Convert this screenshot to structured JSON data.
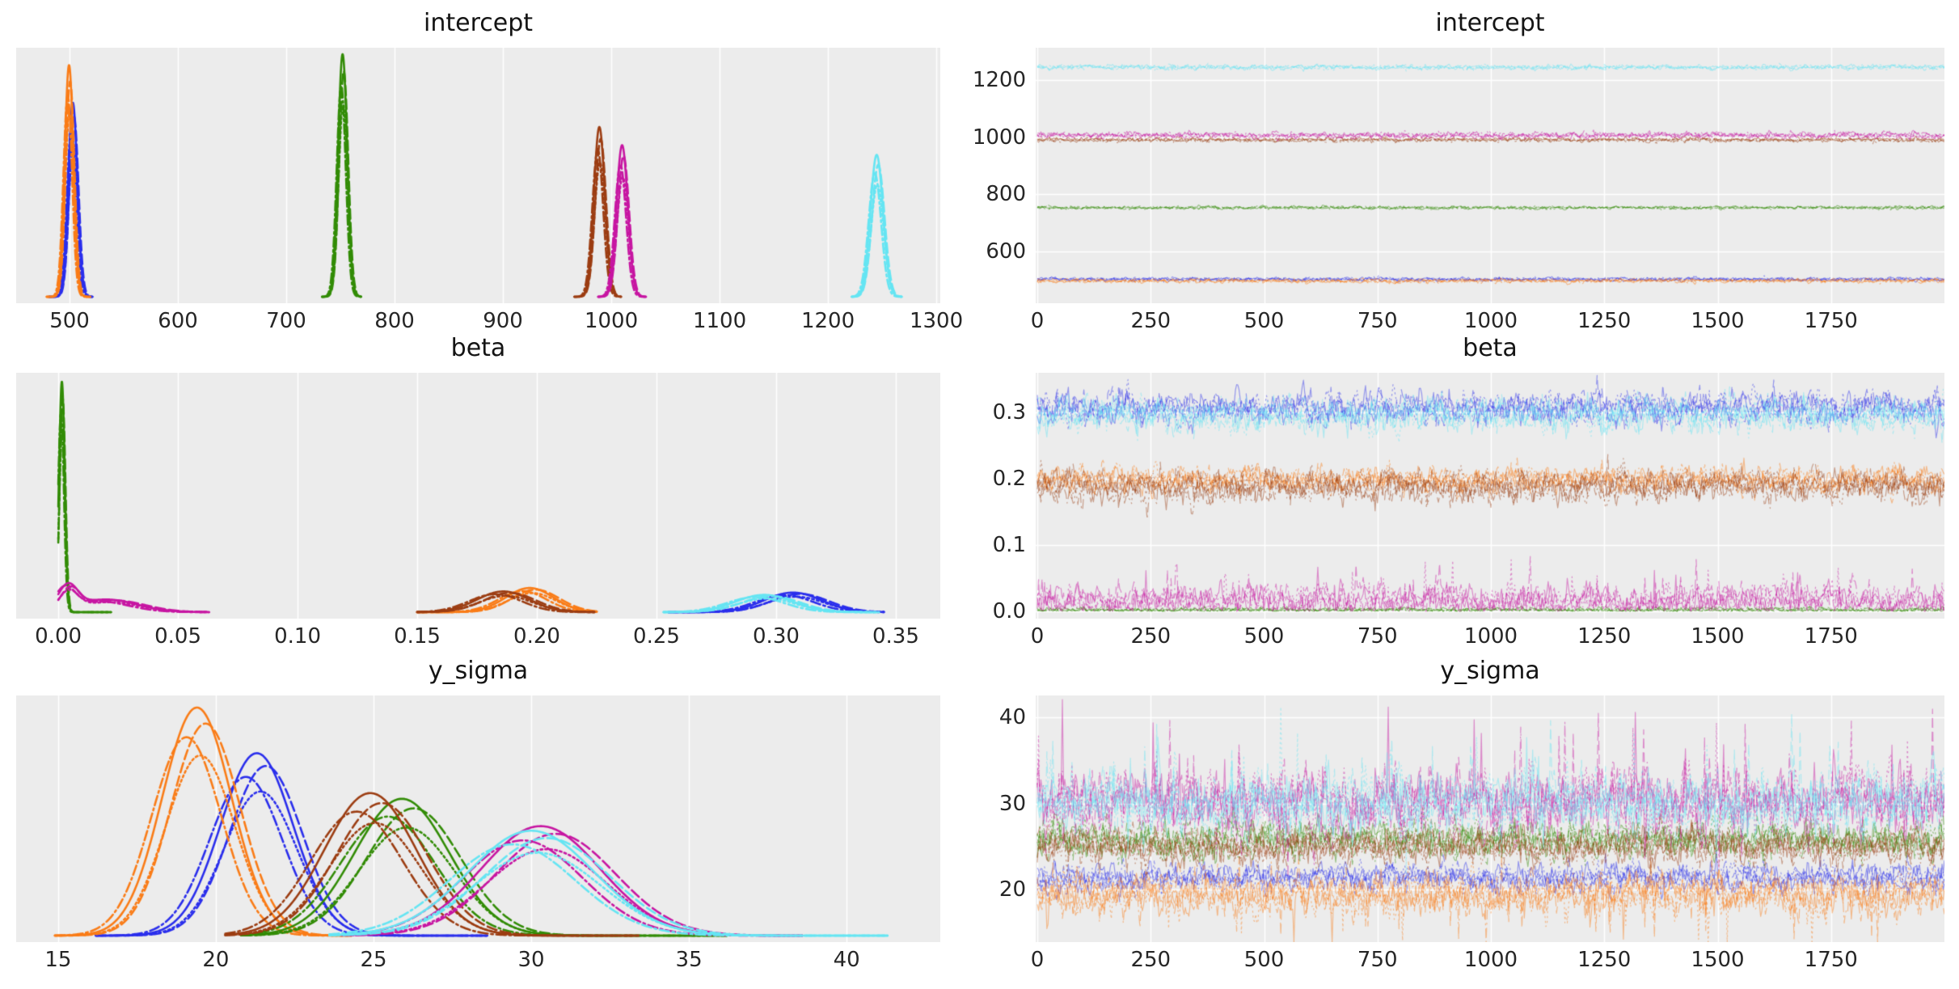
{
  "figure": {
    "background": "#ffffff",
    "axes_background": "#ececec",
    "grid_color": "#ffffff",
    "tick_color": "#262626",
    "title_color": "#141414",
    "palette": {
      "blue": "#2a2eec",
      "orange": "#fa7c17",
      "green": "#328c06",
      "brown": "#9c3d12",
      "magenta": "#c716a2",
      "cyan": "#65e5f3"
    },
    "chain_linestyles": [
      "solid",
      "dashed",
      "dashdot",
      "dotted"
    ]
  },
  "chart_data": [
    {
      "id": "intercept-density",
      "type": "kde",
      "title": "intercept",
      "xlabel": "",
      "ylabel": "",
      "legend": "none",
      "grid": "x",
      "xlim": [
        450.7,
        1303.7
      ],
      "x_ticks": [
        500,
        600,
        700,
        800,
        900,
        1000,
        1100,
        1200,
        1300
      ],
      "x_tick_labels": [
        "500",
        "600",
        "700",
        "800",
        "900",
        "1000",
        "1100",
        "1200",
        "1300"
      ],
      "series": [
        {
          "name": "blue",
          "color": "#2a2eec",
          "components": [
            {
              "center": 503,
              "sd": 4.2,
              "height": 0.8
            }
          ],
          "span": [
            481,
            521
          ]
        },
        {
          "name": "orange",
          "color": "#fa7c17",
          "components": [
            {
              "center": 499.5,
              "sd": 4.0,
              "height": 0.955
            }
          ],
          "span": [
            479,
            519
          ]
        },
        {
          "name": "green",
          "color": "#328c06",
          "components": [
            {
              "center": 752,
              "sd": 4.2,
              "height": 1.0
            }
          ],
          "span": [
            733,
            769
          ]
        },
        {
          "name": "brown",
          "color": "#9c3d12",
          "components": [
            {
              "center": 989,
              "sd": 5.0,
              "height": 0.7
            }
          ],
          "span": [
            966,
            1009
          ]
        },
        {
          "name": "magenta",
          "color": "#c716a2",
          "components": [
            {
              "center": 1010,
              "sd": 5.2,
              "height": 0.625
            }
          ],
          "span": [
            988,
            1032
          ]
        },
        {
          "name": "cyan",
          "color": "#65e5f3",
          "components": [
            {
              "center": 1245,
              "sd": 5.8,
              "height": 0.585
            }
          ],
          "span": [
            1222,
            1268
          ]
        }
      ]
    },
    {
      "id": "intercept-trace",
      "type": "trace",
      "title": "intercept",
      "xlabel": "",
      "ylabel": "",
      "legend": "none",
      "grid": "both",
      "xlim": [
        -3.6,
        2000
      ],
      "ylim": [
        418.8,
        1313.2
      ],
      "draws": 2000,
      "x_ticks": [
        0,
        250,
        500,
        750,
        1000,
        1250,
        1500,
        1750
      ],
      "x_tick_labels": [
        "0",
        "250",
        "500",
        "750",
        "1000",
        "1250",
        "1500",
        "1750"
      ],
      "y_ticks": [
        600,
        800,
        1000,
        1200
      ],
      "y_tick_labels": [
        "600",
        "800",
        "1000",
        "1200"
      ],
      "series": [
        {
          "name": "blue",
          "color": "#2a2eec",
          "mean": 503,
          "sd": 3.0
        },
        {
          "name": "orange",
          "color": "#fa7c17",
          "mean": 497.5,
          "sd": 3.2
        },
        {
          "name": "green",
          "color": "#328c06",
          "mean": 753.5,
          "sd": 2.6
        },
        {
          "name": "brown",
          "color": "#9c3d12",
          "mean": 991,
          "sd": 3.6
        },
        {
          "name": "magenta",
          "color": "#c716a2",
          "mean": 1007,
          "sd": 5.0
        },
        {
          "name": "cyan",
          "color": "#65e5f3",
          "mean": 1245,
          "sd": 4.0
        }
      ]
    },
    {
      "id": "beta-density",
      "type": "kde",
      "title": "beta",
      "xlabel": "",
      "ylabel": "",
      "legend": "none",
      "grid": "x",
      "xlim": [
        -0.0176,
        0.3686
      ],
      "x_ticks": [
        0.0,
        0.05,
        0.1,
        0.15,
        0.2,
        0.25,
        0.3,
        0.35
      ],
      "x_tick_labels": [
        "0.00",
        "0.05",
        "0.10",
        "0.15",
        "0.20",
        "0.25",
        "0.30",
        "0.35"
      ],
      "series": [
        {
          "name": "blue",
          "color": "#2a2eec",
          "components": [
            {
              "center": 0.307,
              "sd": 0.012,
              "height": 0.085
            }
          ],
          "span": [
            0.255,
            0.345
          ]
        },
        {
          "name": "orange",
          "color": "#fa7c17",
          "components": [
            {
              "center": 0.197,
              "sd": 0.01,
              "height": 0.105
            }
          ],
          "span": [
            0.15,
            0.225
          ]
        },
        {
          "name": "green",
          "color": "#328c06",
          "components": [
            {
              "center": 0.0015,
              "sd": 0.0012,
              "height": 1.0
            }
          ],
          "span": [
            0.0,
            0.022
          ]
        },
        {
          "name": "brown",
          "color": "#9c3d12",
          "components": [
            {
              "center": 0.186,
              "sd": 0.011,
              "height": 0.09
            }
          ],
          "span": [
            0.15,
            0.224
          ]
        },
        {
          "name": "magenta",
          "color": "#c716a2",
          "components": [
            {
              "center": 0.004,
              "sd": 0.004,
              "height": 0.1
            },
            {
              "center": 0.02,
              "sd": 0.013,
              "height": 0.055
            }
          ],
          "span": [
            0.0,
            0.063
          ]
        },
        {
          "name": "cyan",
          "color": "#65e5f3",
          "components": [
            {
              "center": 0.295,
              "sd": 0.012,
              "height": 0.075
            }
          ],
          "span": [
            0.253,
            0.343
          ]
        }
      ]
    },
    {
      "id": "beta-trace",
      "type": "trace",
      "title": "beta",
      "xlabel": "",
      "ylabel": "",
      "legend": "none",
      "grid": "both",
      "xlim": [
        -3.6,
        2000
      ],
      "ylim": [
        -0.011,
        0.35975
      ],
      "draws": 2000,
      "x_ticks": [
        0,
        250,
        500,
        750,
        1000,
        1250,
        1500,
        1750
      ],
      "x_tick_labels": [
        "0",
        "250",
        "500",
        "750",
        "1000",
        "1250",
        "1500",
        "1750"
      ],
      "y_ticks": [
        0.0,
        0.1,
        0.2,
        0.3
      ],
      "y_tick_labels": [
        "0.0",
        "0.1",
        "0.2",
        "0.3"
      ],
      "series": [
        {
          "name": "blue",
          "color": "#2a2eec",
          "mean": 0.307,
          "sd": 0.011
        },
        {
          "name": "orange",
          "color": "#fa7c17",
          "mean": 0.198,
          "sd": 0.009
        },
        {
          "name": "green",
          "color": "#328c06",
          "mean": 0.002,
          "sd": 0.002,
          "clip0": true
        },
        {
          "name": "brown",
          "color": "#9c3d12",
          "mean": 0.188,
          "sd": 0.011
        },
        {
          "name": "magenta",
          "color": "#c716a2",
          "mean": 0.016,
          "sd": 0.011,
          "clip0": true,
          "spiky": true,
          "tail": 1
        },
        {
          "name": "cyan",
          "color": "#65e5f3",
          "mean": 0.296,
          "sd": 0.012
        }
      ]
    },
    {
      "id": "y_sigma-density",
      "type": "kde",
      "title": "y_sigma",
      "xlabel": "",
      "ylabel": "",
      "legend": "none",
      "grid": "x",
      "xlim": [
        13.67,
        42.97
      ],
      "x_ticks": [
        15,
        20,
        25,
        30,
        35,
        40
      ],
      "x_tick_labels": [
        "15",
        "20",
        "25",
        "30",
        "35",
        "40"
      ],
      "series": [
        {
          "name": "blue",
          "color": "#2a2eec",
          "components": [
            {
              "center": 21.3,
              "sd": 1.15,
              "height": 0.8
            }
          ],
          "span": [
            16.2,
            28.6
          ]
        },
        {
          "name": "orange",
          "color": "#fa7c17",
          "components": [
            {
              "center": 19.4,
              "sd": 1.1,
              "height": 1.0
            }
          ],
          "span": [
            14.9,
            24.3
          ]
        },
        {
          "name": "green",
          "color": "#328c06",
          "components": [
            {
              "center": 25.9,
              "sd": 1.5,
              "height": 0.6
            }
          ],
          "span": [
            20.8,
            36.2
          ]
        },
        {
          "name": "brown",
          "color": "#9c3d12",
          "components": [
            {
              "center": 24.9,
              "sd": 1.45,
              "height": 0.625
            }
          ],
          "span": [
            20.3,
            33.4
          ]
        },
        {
          "name": "magenta",
          "color": "#c716a2",
          "components": [
            {
              "center": 30.3,
              "sd": 1.9,
              "height": 0.48
            }
          ],
          "span": [
            24.0,
            38.6
          ]
        },
        {
          "name": "cyan",
          "color": "#65e5f3",
          "components": [
            {
              "center": 30.0,
              "sd": 2.0,
              "height": 0.46
            }
          ],
          "span": [
            23.6,
            41.3
          ]
        }
      ]
    },
    {
      "id": "y_sigma-trace",
      "type": "trace",
      "title": "y_sigma",
      "xlabel": "",
      "ylabel": "",
      "legend": "none",
      "grid": "both",
      "xlim": [
        -3.6,
        2000
      ],
      "ylim": [
        13.9,
        42.54
      ],
      "draws": 2000,
      "x_ticks": [
        0,
        250,
        500,
        750,
        1000,
        1250,
        1500,
        1750
      ],
      "x_tick_labels": [
        "0",
        "250",
        "500",
        "750",
        "1000",
        "1250",
        "1500",
        "1750"
      ],
      "y_ticks": [
        20,
        30,
        40
      ],
      "y_tick_labels": [
        "20",
        "30",
        "40"
      ],
      "series": [
        {
          "name": "blue",
          "color": "#2a2eec",
          "mean": 21.4,
          "sd": 0.75
        },
        {
          "name": "orange",
          "color": "#fa7c17",
          "mean": 19.5,
          "sd": 1.1,
          "spiky": true,
          "tail": -1
        },
        {
          "name": "green",
          "color": "#328c06",
          "mean": 25.8,
          "sd": 0.95
        },
        {
          "name": "brown",
          "color": "#9c3d12",
          "mean": 25.0,
          "sd": 0.95
        },
        {
          "name": "magenta",
          "color": "#c716a2",
          "mean": 30.2,
          "sd": 1.7,
          "spiky": true,
          "tail": 1
        },
        {
          "name": "cyan",
          "color": "#65e5f3",
          "mean": 30.0,
          "sd": 1.6,
          "spiky": true,
          "tail": 1
        }
      ]
    }
  ]
}
